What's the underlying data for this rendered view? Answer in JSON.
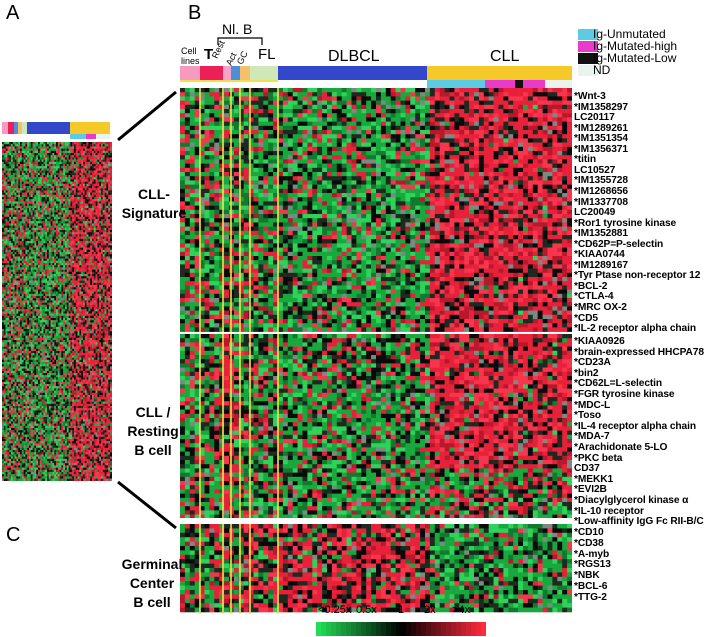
{
  "panel_a": {
    "letter": "A"
  },
  "panel_b": {
    "letter": "B"
  },
  "panel_c": {
    "letter": "C"
  },
  "header": {
    "cell_lines": "Cell\nlines",
    "t": "T",
    "nl_b": "Nl. B",
    "rest": "Rest",
    "act": "Act",
    "gc": "GC",
    "fl": "FL",
    "dlbcl": "DLBCL",
    "cll": "CLL"
  },
  "legend": {
    "items": [
      {
        "label": "Ig-Unmutated",
        "color": "#5bcbe6"
      },
      {
        "label": "Ig-Mutated-high",
        "color": "#e83bcb"
      },
      {
        "label": "Ig-Mutated-Low",
        "color": "#111111"
      },
      {
        "label": "ND",
        "color": "#e8f4ec"
      }
    ]
  },
  "sections": {
    "cll_signature": "CLL-\nSignature",
    "cll_resting": "CLL /\nResting\nB cell",
    "germinal_center": "Germinal\nCenter\nB cell"
  },
  "genes_cll_signature": [
    "*Wnt-3",
    "*IM1358297",
    "LC20117",
    "*IM1289261",
    "*IM1351354",
    "*IM1356371",
    "*titin",
    "LC10527",
    "*IM1355728",
    "*IM1268656",
    "*IM1337708",
    "LC20049",
    "*Ror1 tyrosine kinase",
    "*IM1352881",
    "*CD62P=P-selectin",
    "*KIAA0744",
    "*IM1289167",
    "*Tyr Ptase non-receptor 12",
    "*BCL-2",
    "*CTLA-4",
    "*MRC OX-2",
    "*CD5",
    "*IL-2 receptor alpha chain"
  ],
  "genes_cll_resting": [
    "*KIAA0926",
    "*brain-expressed HHCPA78",
    "*CD23A",
    "*bin2",
    "*CD62L=L-selectin",
    "*FGR tyrosine kinase",
    "*MDC-L",
    "*Toso",
    "*IL-4 receptor alpha chain",
    "*MDA-7",
    "*Arachidonate 5-LO",
    "*PKC beta",
    "CD37",
    "*MEKK1",
    "*EVI2B",
    "*Diacylglycerol kinase α",
    "*IL-10 receptor",
    "*Low-affinity IgG Fc RII-B/C"
  ],
  "genes_germinal_center": [
    "*CD10",
    "*CD38",
    "*A-myb",
    "*RGS13",
    "*NBK",
    "*BCL-6",
    "*TTG-2"
  ],
  "color_scale": {
    "labels": [
      "<0.25x",
      "0.5x",
      "1",
      "2x",
      ">4x"
    ],
    "low_color": "#22dd55",
    "mid_color": "#000000",
    "high_color": "#ff2a3d"
  },
  "heatmap_colors": {
    "green": "#1fbf45",
    "black": "#050505",
    "red": "#f0203a",
    "grey": "#7a8a80",
    "separator": "#f2e14a"
  },
  "sample_bar_colors": {
    "cell_lines": "#f79ac0",
    "t": "#ec1f58",
    "rest": "#f5a3c8",
    "act": "#4b8fdc",
    "gc": "#f5c06a",
    "fl": "#cfe8b8",
    "dlbcl": "#3247c9",
    "cll": "#f5c92a"
  }
}
